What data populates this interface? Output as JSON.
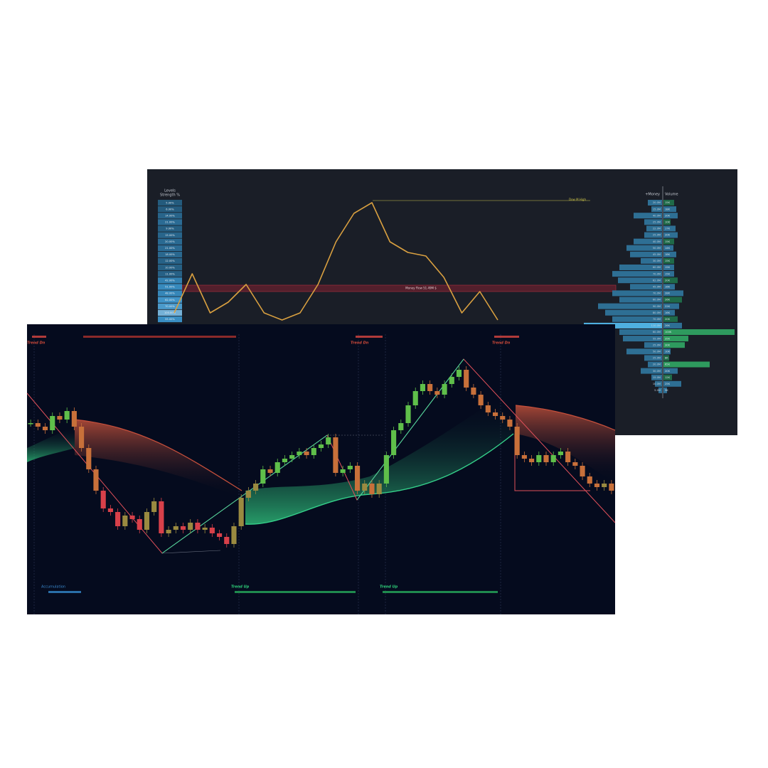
{
  "back_panel": {
    "levels_title": "Levels",
    "levels_subtitle": "Strength %",
    "levels": [
      5,
      6,
      14,
      21,
      9,
      15,
      20,
      21,
      18,
      12,
      10,
      11,
      42,
      51,
      48,
      62,
      70,
      100,
      55
    ],
    "level_labels": [
      "5.00%",
      "6.00%",
      "14.00%",
      "21.00%",
      "9.00%",
      "15.00%",
      "20.00%",
      "21.00%",
      "18.00%",
      "12.00%",
      "10.00%",
      "11.00%",
      "42.00%",
      "51.00%",
      "48.00%",
      "62.00%",
      "70.00%",
      "100.00%",
      "55.00%"
    ],
    "money_header": "+Money",
    "volume_header": "Volume",
    "money": [
      20,
      15,
      40,
      25,
      22,
      25,
      40,
      50,
      45,
      30,
      60,
      70,
      62,
      45,
      70,
      60,
      90,
      80,
      70,
      110,
      60,
      55,
      25,
      50,
      25,
      20,
      30,
      15,
      10,
      5
    ],
    "money_labels": [
      "20.0M",
      "15.0M",
      "40.0M",
      "25.0M",
      "22.0M",
      "25.0M",
      "40.0M",
      "50.0M",
      "45.0M",
      "30.0M",
      "60.0M",
      "70.0M",
      "62.0M",
      "45.0M",
      "70.0M",
      "60.0M",
      "90.0M",
      "80.0M",
      "70.0M",
      "110.0M",
      "60.0M",
      "55.0M",
      "25.0M",
      "50.0M",
      "25.0M",
      "20.0M",
      "30.0M",
      "15.0M",
      "10.0M",
      "5.0M"
    ],
    "volume": [
      15,
      18,
      20,
      10,
      17,
      20,
      15,
      14,
      18,
      15,
      15,
      15,
      20,
      16,
      28,
      26,
      22,
      16,
      20,
      26,
      100,
      35,
      30,
      10,
      8,
      65,
      20,
      12,
      25,
      5
    ],
    "volume_labels": [
      "15K",
      "18K",
      "20K",
      "10K",
      "17K",
      "20K",
      "15K",
      "14K",
      "18K",
      "15K",
      "15K",
      "15K",
      "20K",
      "16K",
      "28K",
      "26K",
      "22K",
      "16K",
      "20K",
      "26K",
      "100K",
      "35K",
      "30K",
      "10K",
      "8K",
      "65K",
      "20K",
      "12K",
      "25K",
      "5K"
    ],
    "money_flow_label": "Money Flow 51.49M $",
    "high_label": "Dow M High",
    "price": [
      16,
      71,
      16,
      31,
      56,
      16,
      6,
      16,
      56,
      116,
      156,
      171,
      116,
      101,
      96,
      66,
      16,
      46,
      6
    ],
    "ylim": [
      0,
      218
    ]
  },
  "front_panel": {
    "trend_down_labels": [
      "Trend Dn",
      "Trend Dn",
      "Trend Dn"
    ],
    "trend_up_labels": [
      "Trend Up",
      "Trend Up"
    ],
    "accumulation_label": "Accumulation",
    "price": [
      269,
      264,
      259,
      279,
      274,
      286,
      264,
      234,
      204,
      174,
      149,
      144,
      124,
      139,
      134,
      119,
      144,
      159,
      114,
      119,
      124,
      119,
      129,
      119,
      122,
      114,
      109,
      99,
      124,
      164,
      174,
      184,
      204,
      199,
      214,
      219,
      224,
      229,
      224,
      234,
      239,
      249,
      199,
      204,
      209,
      174,
      184,
      169,
      184,
      224,
      259,
      269,
      294,
      314,
      324,
      314,
      309,
      324,
      334,
      344,
      319,
      309,
      294,
      284,
      279,
      274,
      264,
      224,
      219,
      214,
      224,
      214,
      224,
      229,
      214,
      209,
      194,
      184,
      179,
      184,
      174
    ],
    "ylim": [
      0,
      408
    ]
  }
}
